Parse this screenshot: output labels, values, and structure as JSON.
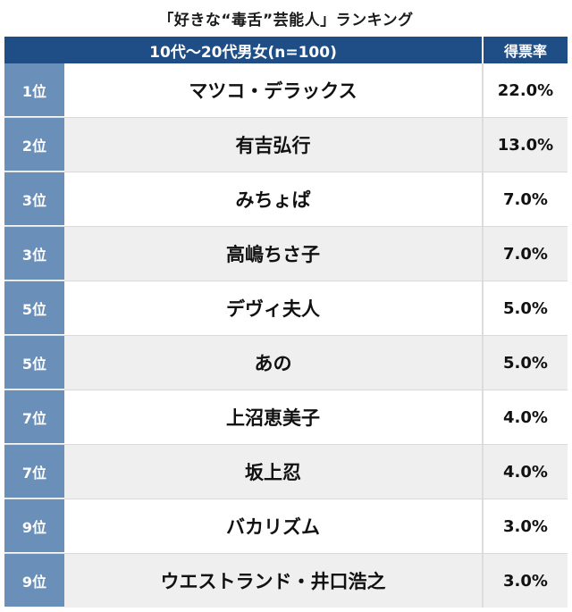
{
  "chart_data": {
    "type": "table",
    "title": "「好きな“毒舌”芸能人」ランキング",
    "header": {
      "group_label": "10代〜20代男女(n=100)",
      "share_label": "得票率"
    },
    "rows": [
      {
        "rank": "1位",
        "name": "マツコ・デラックス",
        "share": "22.0%"
      },
      {
        "rank": "2位",
        "name": "有吉弘行",
        "share": "13.0%"
      },
      {
        "rank": "3位",
        "name": "みちょぱ",
        "share": "7.0%"
      },
      {
        "rank": "3位",
        "name": "高嶋ちさ子",
        "share": "7.0%"
      },
      {
        "rank": "5位",
        "name": "デヴィ夫人",
        "share": "5.0%"
      },
      {
        "rank": "5位",
        "name": "あの",
        "share": "5.0%"
      },
      {
        "rank": "7位",
        "name": "上沼恵美子",
        "share": "4.0%"
      },
      {
        "rank": "7位",
        "name": "坂上忍",
        "share": "4.0%"
      },
      {
        "rank": "9位",
        "name": "バカリズム",
        "share": "3.0%"
      },
      {
        "rank": "9位",
        "name": "ウエストランド・井口浩之",
        "share": "3.0%"
      }
    ],
    "colors": {
      "header_bg": "#1f4e86",
      "rank_bg": "#6a8fb8",
      "alt_row_bg": "#efefef"
    }
  }
}
